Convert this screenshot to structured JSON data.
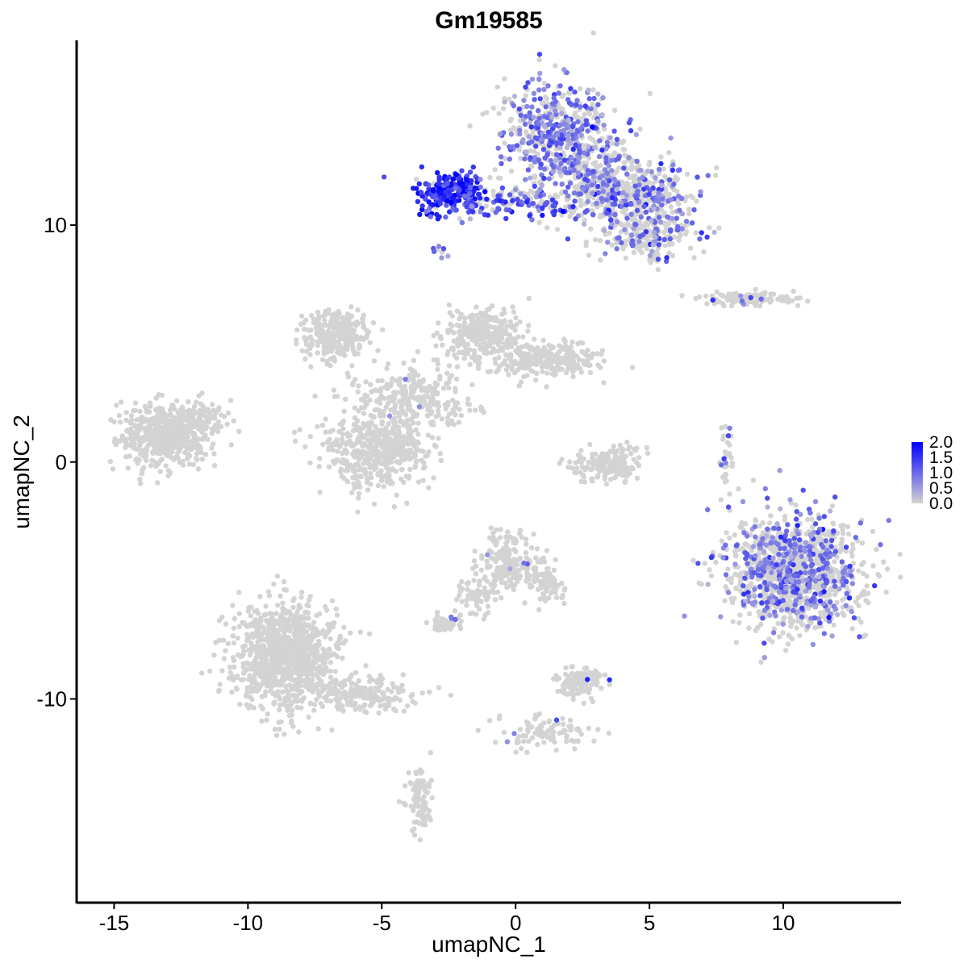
{
  "chart_data": {
    "type": "scatter",
    "title": "Gm19585",
    "xlabel": "umapNC_1",
    "ylabel": "umapNC_2",
    "xlim": [
      -16.4,
      14.4
    ],
    "ylim": [
      -18.6,
      17.8
    ],
    "x_ticks": [
      -15,
      -10,
      -5,
      0,
      5,
      10
    ],
    "y_ticks": [
      -10,
      0,
      10
    ],
    "x_tick_labels": [
      "-15",
      "-10",
      "-5",
      "0",
      "5",
      "10"
    ],
    "y_tick_labels": [
      "-10",
      "0",
      "10"
    ],
    "grid": false,
    "point_color_low": "#d3d3d3",
    "point_color_high": "#0000ff",
    "colorbar": {
      "min": 0.0,
      "max": 2.0,
      "ticks": [
        0.0,
        0.5,
        1.0,
        1.5,
        2.0
      ],
      "tick_labels": [
        "0.0",
        "0.5",
        "1.0",
        "1.5",
        "2.0"
      ],
      "placement": "right"
    },
    "clusters": [
      {
        "name_hint": "top-left expressing",
        "cx": -2.4,
        "cy": 11.4,
        "sx": 0.6,
        "sy": 0.45,
        "n": 260,
        "expr_frac": 0.9,
        "expr_mean": 1.6
      },
      {
        "name_hint": "top bridge",
        "cx": 0.3,
        "cy": 11.0,
        "sx": 1.4,
        "sy": 0.35,
        "n": 140,
        "expr_frac": 0.6,
        "expr_mean": 1.1
      },
      {
        "name_hint": "top upper lobe",
        "cx": 1.6,
        "cy": 13.8,
        "sx": 1.1,
        "sy": 1.1,
        "n": 520,
        "expr_frac": 0.55,
        "expr_mean": 0.9
      },
      {
        "name_hint": "top stem",
        "cx": 3.0,
        "cy": 11.8,
        "sx": 0.9,
        "sy": 0.9,
        "n": 300,
        "expr_frac": 0.3,
        "expr_mean": 0.8
      },
      {
        "name_hint": "top right arm",
        "cx": 5.0,
        "cy": 11.4,
        "sx": 0.9,
        "sy": 0.6,
        "n": 260,
        "expr_frac": 0.3,
        "expr_mean": 0.9
      },
      {
        "name_hint": "top lower right",
        "cx": 5.0,
        "cy": 9.6,
        "sx": 0.8,
        "sy": 0.55,
        "n": 230,
        "expr_frac": 0.25,
        "expr_mean": 0.9
      },
      {
        "name_hint": "small bits",
        "cx": -2.8,
        "cy": 8.9,
        "sx": 0.15,
        "sy": 0.2,
        "n": 10,
        "expr_frac": 0.6,
        "expr_mean": 0.8
      },
      {
        "name_hint": "right thin strip",
        "cx": 8.7,
        "cy": 6.9,
        "sx": 0.9,
        "sy": 0.15,
        "n": 120,
        "expr_frac": 0.06,
        "expr_mean": 0.8
      },
      {
        "name_hint": "far left blob",
        "cx": -13.2,
        "cy": 1.1,
        "sx": 0.75,
        "sy": 0.6,
        "n": 520,
        "expr_frac": 0.004,
        "expr_mean": 0.8
      },
      {
        "name_hint": "left blob arm",
        "cx": -11.6,
        "cy": 1.8,
        "sx": 0.5,
        "sy": 0.45,
        "n": 100,
        "expr_frac": 0.0,
        "expr_mean": 0.0
      },
      {
        "name_hint": "central upper left",
        "cx": -6.8,
        "cy": 5.4,
        "sx": 0.6,
        "sy": 0.5,
        "n": 300,
        "expr_frac": 0.0,
        "expr_mean": 0.0
      },
      {
        "name_hint": "central upper right",
        "cx": -1.2,
        "cy": 5.5,
        "sx": 0.7,
        "sy": 0.55,
        "n": 280,
        "expr_frac": 0.0,
        "expr_mean": 0.0
      },
      {
        "name_hint": "central right arm",
        "cx": 1.3,
        "cy": 4.3,
        "sx": 1.0,
        "sy": 0.35,
        "n": 260,
        "expr_frac": 0.0,
        "expr_mean": 0.0
      },
      {
        "name_hint": "central hub",
        "cx": -3.8,
        "cy": 2.8,
        "sx": 1.2,
        "sy": 0.8,
        "n": 280,
        "expr_frac": 0.01,
        "expr_mean": 0.8
      },
      {
        "name_hint": "central lower blob",
        "cx": -5.2,
        "cy": 0.4,
        "sx": 1.0,
        "sy": 0.8,
        "n": 480,
        "expr_frac": 0.0,
        "expr_mean": 0.0
      },
      {
        "name_hint": "central small",
        "cx": 3.4,
        "cy": -0.1,
        "sx": 0.6,
        "sy": 0.45,
        "n": 160,
        "expr_frac": 0.0,
        "expr_mean": 0.0
      },
      {
        "name_hint": "right small strip",
        "cx": 7.9,
        "cy": 0.1,
        "sx": 0.12,
        "sy": 0.8,
        "n": 30,
        "expr_frac": 0.15,
        "expr_mean": 0.8
      },
      {
        "name_hint": "right large blob",
        "cx": 10.4,
        "cy": -4.7,
        "sx": 1.25,
        "sy": 1.15,
        "n": 1200,
        "expr_frac": 0.32,
        "expr_mean": 0.9
      },
      {
        "name_hint": "middle lower blob",
        "cx": -0.3,
        "cy": -4.2,
        "sx": 0.6,
        "sy": 0.7,
        "n": 200,
        "expr_frac": 0.02,
        "expr_mean": 0.8
      },
      {
        "name_hint": "middle lower tail",
        "cx": 1.2,
        "cy": -5.0,
        "sx": 0.35,
        "sy": 0.5,
        "n": 80,
        "expr_frac": 0.0,
        "expr_mean": 0.0
      },
      {
        "name_hint": "middle small",
        "cx": -2.6,
        "cy": -6.8,
        "sx": 0.3,
        "sy": 0.15,
        "n": 60,
        "expr_frac": 0.06,
        "expr_mean": 0.8
      },
      {
        "name_hint": "middle connector",
        "cx": -1.5,
        "cy": -5.6,
        "sx": 0.4,
        "sy": 0.35,
        "n": 50,
        "expr_frac": 0.0,
        "expr_mean": 0.0
      },
      {
        "name_hint": "lower middle",
        "cx": 2.4,
        "cy": -9.3,
        "sx": 0.45,
        "sy": 0.3,
        "n": 120,
        "expr_frac": 0.02,
        "expr_mean": 1.2
      },
      {
        "name_hint": "lower strand",
        "cx": 1.2,
        "cy": -11.4,
        "sx": 1.2,
        "sy": 0.35,
        "n": 100,
        "expr_frac": 0.01,
        "expr_mean": 0.7
      },
      {
        "name_hint": "lower left big",
        "cx": -8.6,
        "cy": -8.2,
        "sx": 1.0,
        "sy": 1.1,
        "n": 1000,
        "expr_frac": 0.0,
        "expr_mean": 0.0
      },
      {
        "name_hint": "lower left tail",
        "cx": -5.8,
        "cy": -9.8,
        "sx": 1.0,
        "sy": 0.4,
        "n": 200,
        "expr_frac": 0.0,
        "expr_mean": 0.0
      },
      {
        "name_hint": "bottom strand",
        "cx": -3.6,
        "cy": -14.2,
        "sx": 0.25,
        "sy": 0.8,
        "n": 80,
        "expr_frac": 0.0,
        "expr_mean": 0.0
      }
    ]
  }
}
